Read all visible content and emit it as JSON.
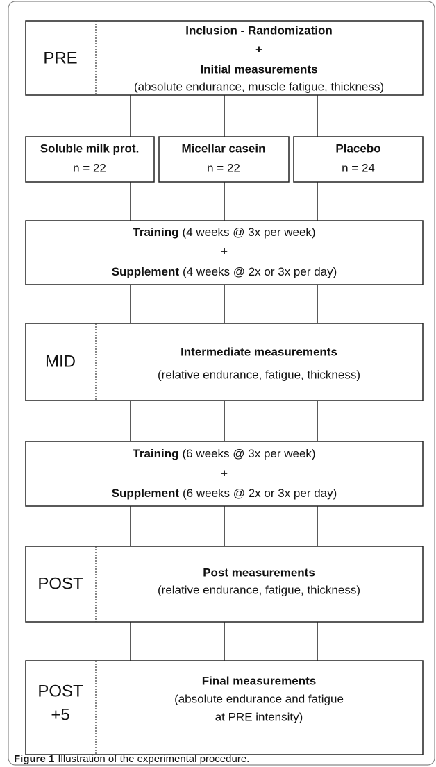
{
  "pre": {
    "label": "PRE",
    "title": "Inclusion - Randomization",
    "plus": "+",
    "subtitle": "Initial measurements",
    "detail": "(absolute endurance, muscle fatigue, thickness)"
  },
  "groups": [
    {
      "name": "Soluble milk prot.",
      "n": "n = 22"
    },
    {
      "name": "Micellar casein",
      "n": "n = 22"
    },
    {
      "name": "Placebo",
      "n": "n = 24"
    }
  ],
  "training_1": {
    "training": "Training",
    "training_detail": "(4 weeks @ 3x per week)",
    "plus": "+",
    "supplement": "Supplement",
    "supplement_detail": "(4 weeks @ 2x or 3x per day)"
  },
  "mid": {
    "label": "MID",
    "title": "Intermediate measurements",
    "detail": "(relative endurance, fatigue, thickness)"
  },
  "training_2": {
    "training": "Training",
    "training_detail": "(6 weeks @ 3x per week)",
    "plus": "+",
    "supplement": "Supplement",
    "supplement_detail": "(6 weeks @ 2x or 3x per day)"
  },
  "post": {
    "label": "POST",
    "title": "Post measurements",
    "detail": "(relative endurance, fatigue, thickness)"
  },
  "post5": {
    "label_1": "POST",
    "label_2": "+5",
    "title": "Final measurements",
    "detail_1": "(absolute endurance and fatigue",
    "detail_2": "at PRE intensity)"
  },
  "caption": {
    "figure_label": "Figure 1",
    "text": "Illustration of the experimental procedure."
  }
}
